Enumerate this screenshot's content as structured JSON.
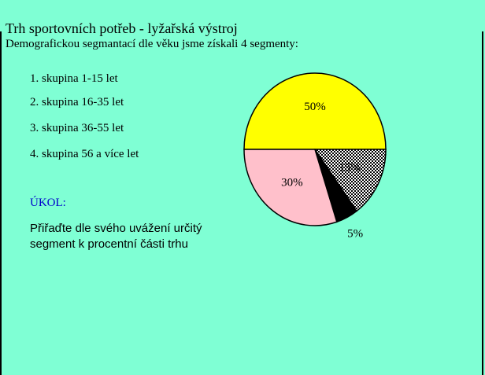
{
  "header": {
    "title": "Trh sportovních potřeb - lyžařská výstroj",
    "subtitle": "Demografickou segmantací dle věku jsme získali  4 segmenty:"
  },
  "groups": [
    "1. skupina 1-15 let",
    "2. skupina 16-35 let",
    "3. skupina 36-55 let",
    "4. skupina 56 a více let"
  ],
  "task": {
    "heading": "ÚKOL:",
    "lines": [
      "Přiřaďte dle svého uvážení určitý",
      "segment k procentní části trhu"
    ]
  },
  "chart_data": {
    "type": "pie",
    "values": [
      50,
      15,
      5,
      30
    ],
    "value_labels": [
      "50%",
      "15%",
      "5%",
      "30%"
    ],
    "colors": [
      "#ffff00",
      "pattern-checker",
      "#000000",
      "#ffc0cb"
    ]
  }
}
